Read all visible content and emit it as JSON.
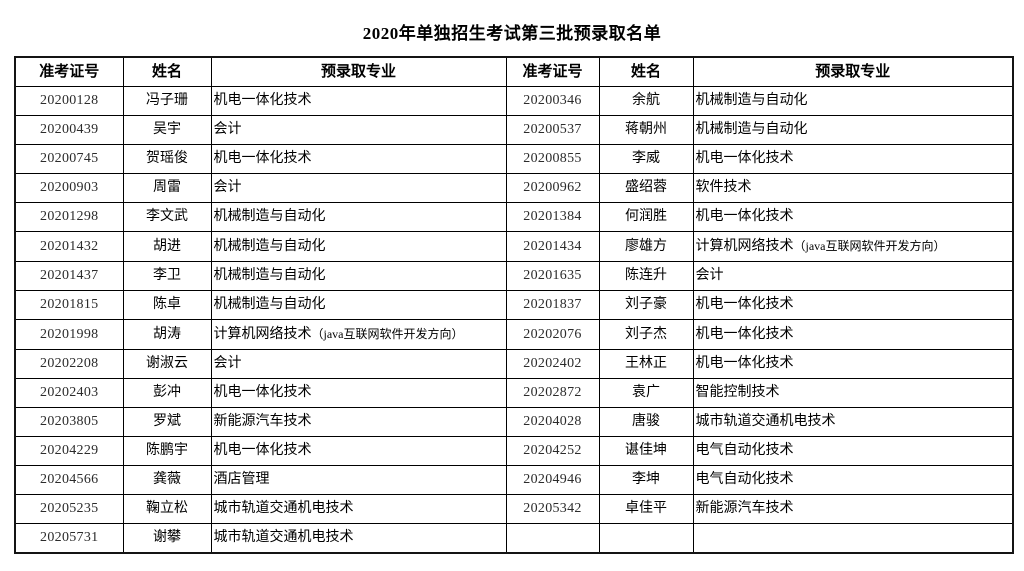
{
  "page": {
    "title": "2020年单独招生考试第三批预录取名单"
  },
  "table": {
    "headers": [
      "准考证号",
      "姓名",
      "预录取专业",
      "准考证号",
      "姓名",
      "预录取专业"
    ],
    "rows": [
      [
        "20200128",
        "冯子珊",
        "机电一体化技术",
        "20200346",
        "余航",
        "机械制造与自动化"
      ],
      [
        "20200439",
        "吴宇",
        "会计",
        "20200537",
        "蒋朝州",
        "机械制造与自动化"
      ],
      [
        "20200745",
        "贺瑶俊",
        "机电一体化技术",
        "20200855",
        "李威",
        "机电一体化技术"
      ],
      [
        "20200903",
        "周雷",
        "会计",
        "20200962",
        "盛绍蓉",
        "软件技术"
      ],
      [
        "20201298",
        "李文武",
        "机械制造与自动化",
        "20201384",
        "何润胜",
        "机电一体化技术"
      ],
      [
        "20201432",
        "胡进",
        "机械制造与自动化",
        "20201434",
        "廖雄方",
        "计算机网络技术（java互联网软件开发方向）"
      ],
      [
        "20201437",
        "李卫",
        "机械制造与自动化",
        "20201635",
        "陈连升",
        "会计"
      ],
      [
        "20201815",
        "陈卓",
        "机械制造与自动化",
        "20201837",
        "刘子豪",
        "机电一体化技术"
      ],
      [
        "20201998",
        "胡涛",
        "计算机网络技术（java互联网软件开发方向）",
        "20202076",
        "刘子杰",
        "机电一体化技术"
      ],
      [
        "20202208",
        "谢淑云",
        "会计",
        "20202402",
        "王林正",
        "机电一体化技术"
      ],
      [
        "20202403",
        "彭冲",
        "机电一体化技术",
        "20202872",
        "袁广",
        "智能控制技术"
      ],
      [
        "20203805",
        "罗斌",
        "新能源汽车技术",
        "20204028",
        "唐骏",
        "城市轨道交通机电技术"
      ],
      [
        "20204229",
        "陈鹏宇",
        "机电一体化技术",
        "20204252",
        "谌佳坤",
        "电气自动化技术"
      ],
      [
        "20204566",
        "龚薇",
        "酒店管理",
        "20204946",
        "李坤",
        "电气自动化技术"
      ],
      [
        "20205235",
        "鞠立松",
        "城市轨道交通机电技术",
        "20205342",
        "卓佳平",
        "新能源汽车技术"
      ],
      [
        "20205731",
        "谢攀",
        "城市轨道交通机电技术",
        "",
        "",
        ""
      ]
    ]
  }
}
